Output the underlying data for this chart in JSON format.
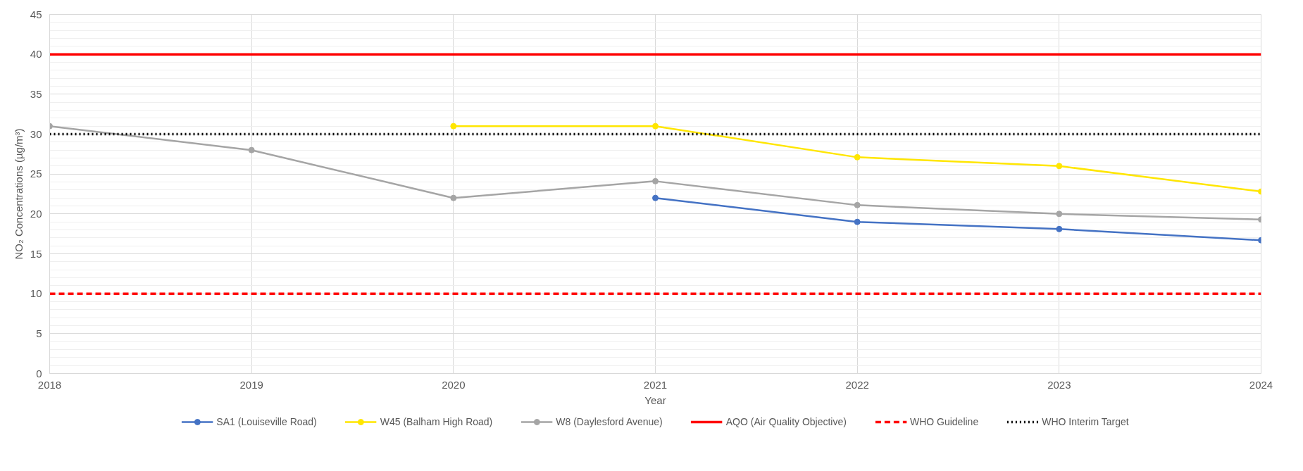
{
  "chart_data": {
    "type": "line",
    "xlabel": "Year",
    "ylabel": "NO₂ Concentrations (µg/m³)",
    "x": [
      2018,
      2019,
      2020,
      2021,
      2022,
      2023,
      2024
    ],
    "series": [
      {
        "name": "SA1 (Louiseville Road)",
        "color": "#4472c4",
        "values": [
          null,
          null,
          null,
          22,
          19,
          18.1,
          16.7
        ]
      },
      {
        "name": "W45 (Balham High Road)",
        "color": "#ffe600",
        "values": [
          null,
          null,
          31,
          31,
          27.1,
          26,
          22.8
        ]
      },
      {
        "name": "W8 (Daylesford Avenue)",
        "color": "#a5a5a5",
        "values": [
          31,
          28,
          22,
          24.1,
          21.1,
          20,
          19.3
        ]
      }
    ],
    "ref_lines": [
      {
        "axis": "y",
        "value": 40,
        "label": "AQO (Air Quality Objective)",
        "color": "#ff0000",
        "line_style": "solid"
      },
      {
        "axis": "y",
        "value": 10,
        "label": "WHO Guideline",
        "color": "#ff0000",
        "line_style": "dashed"
      },
      {
        "axis": "y",
        "value": 30,
        "label": "WHO Interim Target",
        "color": "#000000",
        "line_style": "dotted"
      }
    ],
    "xlim": [
      2018,
      2024
    ],
    "xticks": [
      2018,
      2019,
      2020,
      2021,
      2022,
      2023,
      2024
    ],
    "ylim": [
      0,
      45
    ],
    "yticks": [
      0,
      5,
      10,
      15,
      20,
      25,
      30,
      35,
      40,
      45
    ],
    "grid": true,
    "legend": "bottom",
    "marker": "circle",
    "line_style": "solid"
  }
}
